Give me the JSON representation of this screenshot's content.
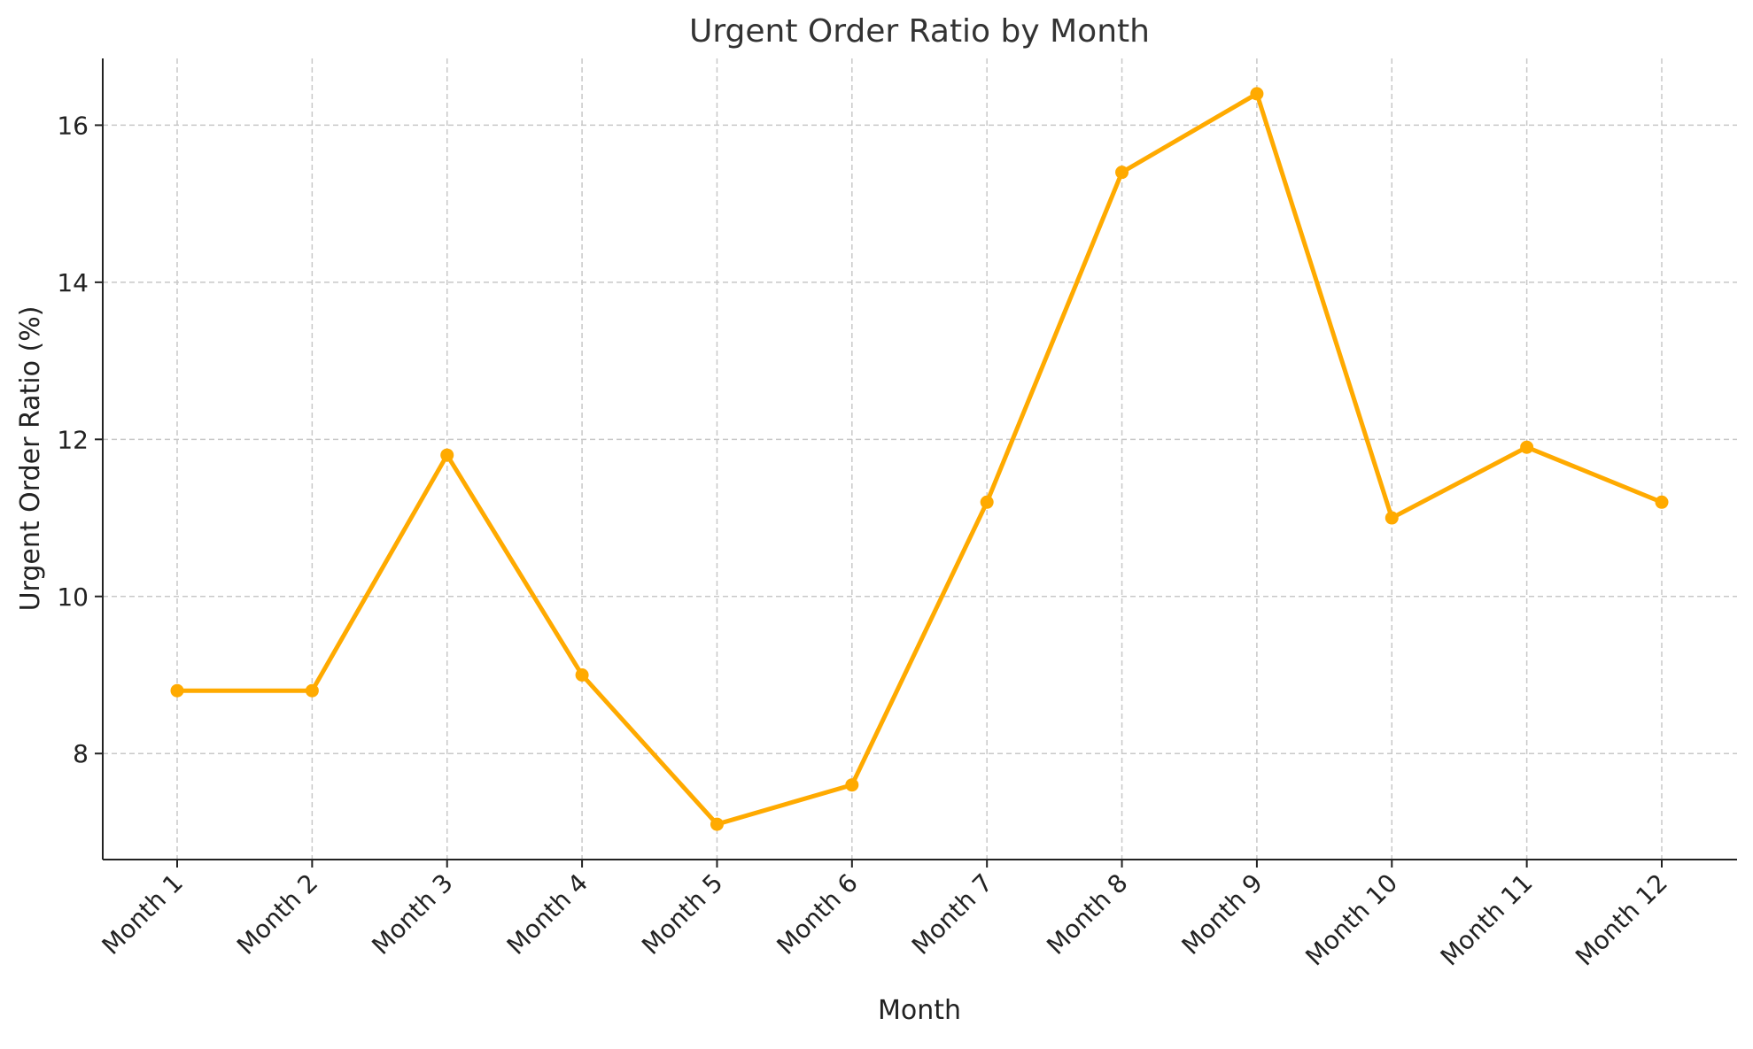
{
  "chart_data": {
    "type": "line",
    "title": "Urgent Order Ratio by Month",
    "xlabel": "Month",
    "ylabel": "Urgent Order Ratio (%)",
    "categories": [
      "Month 1",
      "Month 2",
      "Month 3",
      "Month 4",
      "Month 5",
      "Month 6",
      "Month 7",
      "Month 8",
      "Month 9",
      "Month 10",
      "Month 11",
      "Month 12"
    ],
    "series": [
      {
        "values": [
          8.8,
          8.8,
          11.8,
          9.0,
          7.1,
          7.6,
          11.2,
          15.4,
          16.4,
          11.0,
          11.9,
          11.2
        ]
      }
    ],
    "ylim": [
      6.65,
      16.85
    ],
    "yticks": [
      8,
      10,
      12,
      14,
      16
    ],
    "grid": true,
    "line_color": "#FFAA00",
    "marker": "circle"
  }
}
